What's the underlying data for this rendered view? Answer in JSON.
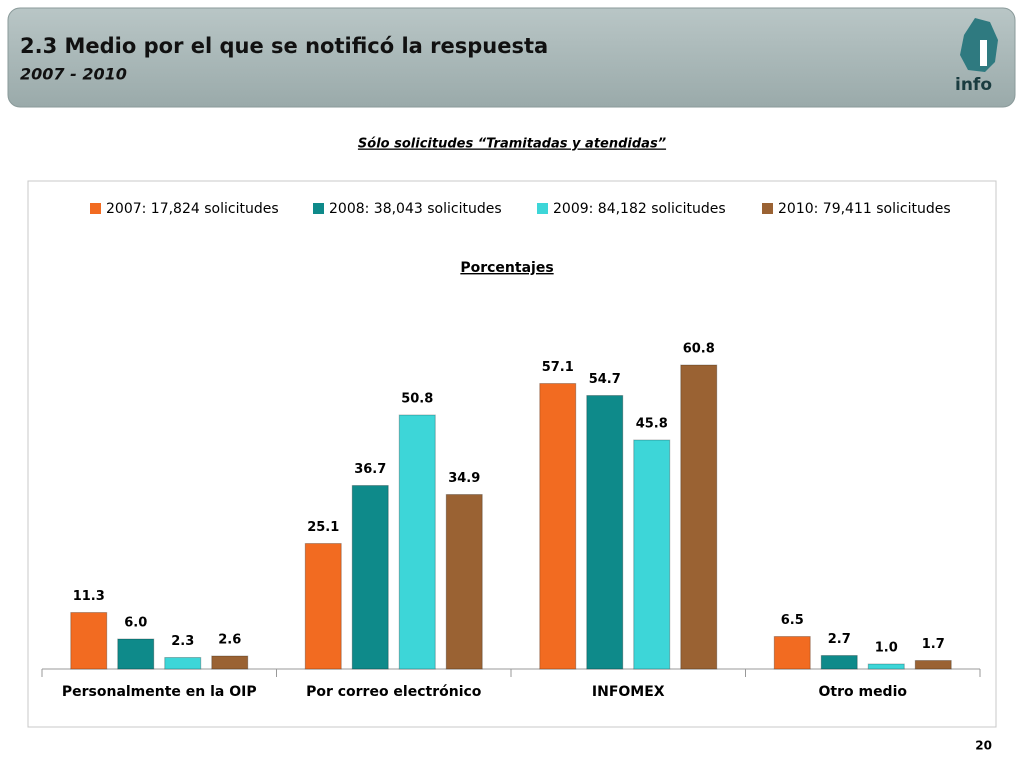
{
  "header": {
    "title": "2.3 Medio por el que se notificó la respuesta",
    "subtitle": "2007 - 2010",
    "logo_text": "info"
  },
  "note": "Sólo solicitudes “Tramitadas y atendidas”",
  "page_number": "20",
  "chart_data": {
    "type": "bar",
    "title": "Porcentajes",
    "categories": [
      "Personalmente en la OIP",
      "Por correo electrónico",
      "INFOMEX",
      "Otro medio"
    ],
    "series": [
      {
        "name": "2007: 17,824 solicitudes",
        "color": "#f26b21",
        "values": [
          11.3,
          25.1,
          57.1,
          6.5
        ],
        "value_labels": [
          "11.3",
          "25.1",
          "57.1",
          "6.5"
        ]
      },
      {
        "name": "2008: 38,043 solicitudes",
        "color": "#0e8a8a",
        "values": [
          6,
          36.7,
          54.7,
          2.7
        ],
        "value_labels": [
          "6.0",
          "36.7",
          "54.7",
          "2.7"
        ]
      },
      {
        "name": "2009: 84,182 solicitudes",
        "color": "#3dd6d8",
        "values": [
          2.3,
          50.8,
          45.8,
          1
        ],
        "value_labels": [
          "2.3",
          "50.8",
          "45.8",
          "1.0"
        ]
      },
      {
        "name": "2010: 79,411 solicitudes",
        "color": "#9a6233",
        "values": [
          2.6,
          34.9,
          60.8,
          1.7
        ],
        "value_labels": [
          "2.6",
          "34.9",
          "60.8",
          "1.7"
        ]
      }
    ],
    "ylim": [
      0,
      70
    ],
    "legend": "top"
  }
}
